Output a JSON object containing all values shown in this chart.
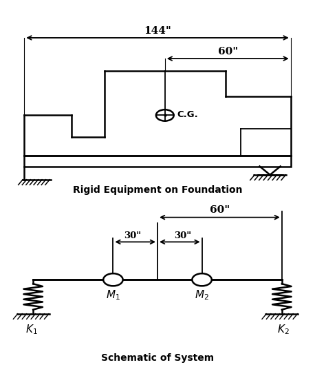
{
  "fig_bg": "#ffffff",
  "top_label": "Rigid Equipment on Foundation",
  "bottom_label": "Schematic of System",
  "dim_144": "144\"",
  "dim_60_top": "60\"",
  "dim_60_bot": "60\"",
  "dim_30a": "30\"",
  "dim_30b": "30\"",
  "cg_label": "C.G.",
  "k1_label": "K",
  "k1_sub": "1",
  "k2_label": "K",
  "k2_sub": "2",
  "m1_label": "M",
  "m1_sub": "1",
  "m2_label": "M",
  "m2_sub": "2"
}
